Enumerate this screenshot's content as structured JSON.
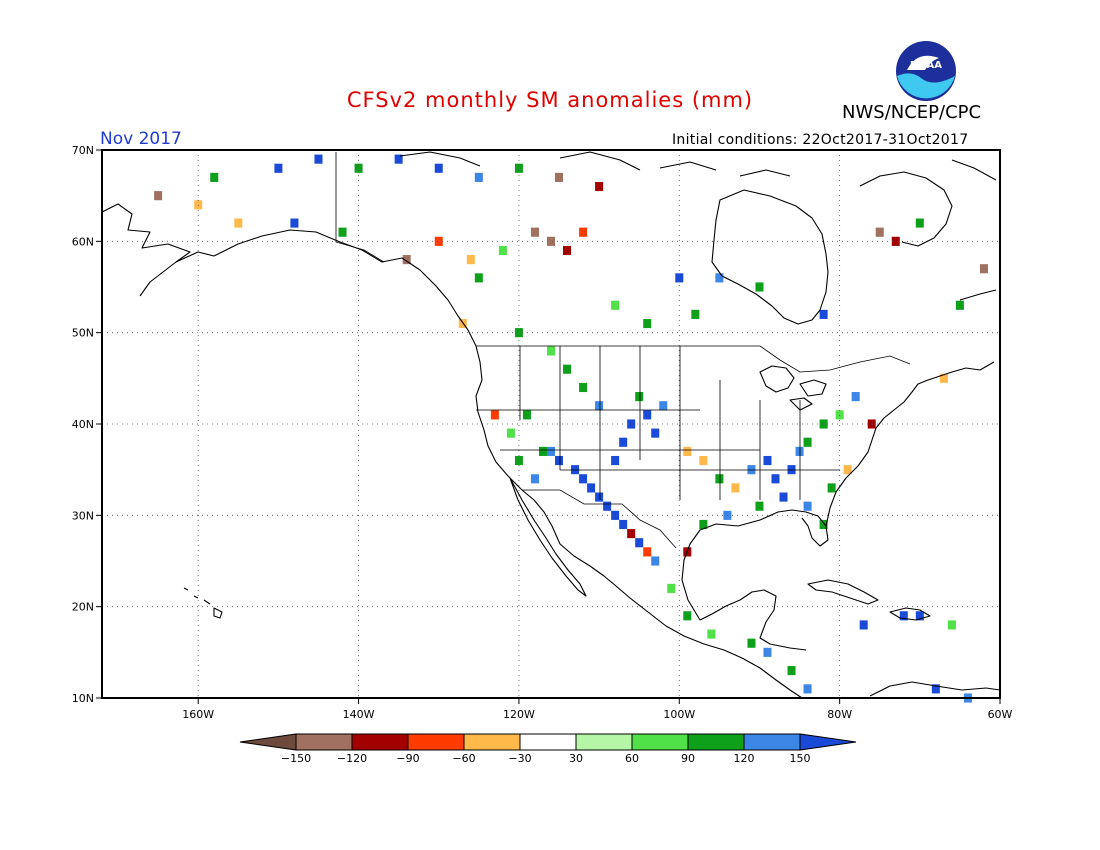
{
  "title": "CFSv2 monthly SM anomalies (mm)",
  "agency": "NWS/NCEP/CPC",
  "month_label": "Nov 2017",
  "initial_conditions": "Initial conditions: 22Oct2017-31Oct2017",
  "logo_text": "NOAA",
  "map": {
    "lon_range": [
      -172,
      -60
    ],
    "lat_range": [
      10,
      70
    ],
    "lat_ticks": [
      {
        "value": 70,
        "label": "70N"
      },
      {
        "value": 60,
        "label": "60N"
      },
      {
        "value": 50,
        "label": "50N"
      },
      {
        "value": 40,
        "label": "40N"
      },
      {
        "value": 30,
        "label": "30N"
      },
      {
        "value": 20,
        "label": "20N"
      },
      {
        "value": 10,
        "label": "10N"
      }
    ],
    "lon_ticks": [
      {
        "value": -160,
        "label": "160W"
      },
      {
        "value": -140,
        "label": "140W"
      },
      {
        "value": -120,
        "label": "120W"
      },
      {
        "value": -100,
        "label": "100W"
      },
      {
        "value": -80,
        "label": "80W"
      },
      {
        "value": -60,
        "label": "60W"
      }
    ],
    "grid": "dotted"
  },
  "colorbar": {
    "bins": [
      {
        "color": "#6e4a3c"
      },
      {
        "color": "#a07060"
      },
      {
        "color": "#a30000"
      },
      {
        "color": "#ff3b00"
      },
      {
        "color": "#ffb84a"
      },
      {
        "color": "#ffffff"
      },
      {
        "color": "#b4f5a6"
      },
      {
        "color": "#50e048"
      },
      {
        "color": "#0ea01a"
      },
      {
        "color": "#3c86e6"
      },
      {
        "color": "#1a4bd8"
      }
    ],
    "labels": [
      "-150",
      "-120",
      "-90",
      "-60",
      "-30",
      "30",
      "60",
      "90",
      "120",
      "150"
    ]
  },
  "anomaly_cells": [
    {
      "lon": -117,
      "lat": 37,
      "v": 90
    },
    {
      "lon": -116,
      "lat": 37,
      "v": 120
    },
    {
      "lon": -115,
      "lat": 36,
      "v": 150
    },
    {
      "lon": -113,
      "lat": 35,
      "v": 150
    },
    {
      "lon": -112,
      "lat": 34,
      "v": 150
    },
    {
      "lon": -111,
      "lat": 33,
      "v": 150
    },
    {
      "lon": -110,
      "lat": 32,
      "v": 150
    },
    {
      "lon": -109,
      "lat": 31,
      "v": 150
    },
    {
      "lon": -108,
      "lat": 30,
      "v": 150
    },
    {
      "lon": -107,
      "lat": 29,
      "v": 150
    },
    {
      "lon": -106,
      "lat": 28,
      "v": -120
    },
    {
      "lon": -105,
      "lat": 27,
      "v": 150
    },
    {
      "lon": -104,
      "lat": 26,
      "v": -90
    },
    {
      "lon": -103,
      "lat": 25,
      "v": 120
    },
    {
      "lon": -108,
      "lat": 36,
      "v": 150
    },
    {
      "lon": -107,
      "lat": 38,
      "v": 150
    },
    {
      "lon": -106,
      "lat": 40,
      "v": 150
    },
    {
      "lon": -104,
      "lat": 41,
      "v": 150
    },
    {
      "lon": -103,
      "lat": 39,
      "v": 150
    },
    {
      "lon": -102,
      "lat": 42,
      "v": 120
    },
    {
      "lon": -105,
      "lat": 43,
      "v": 90
    },
    {
      "lon": -110,
      "lat": 42,
      "v": 120
    },
    {
      "lon": -112,
      "lat": 44,
      "v": 90
    },
    {
      "lon": -114,
      "lat": 46,
      "v": 90
    },
    {
      "lon": -116,
      "lat": 48,
      "v": 60
    },
    {
      "lon": -119,
      "lat": 41,
      "v": 90
    },
    {
      "lon": -121,
      "lat": 39,
      "v": 60
    },
    {
      "lon": -123,
      "lat": 41,
      "v": -90
    },
    {
      "lon": -120,
      "lat": 36,
      "v": 90
    },
    {
      "lon": -118,
      "lat": 34,
      "v": 120
    },
    {
      "lon": -99,
      "lat": 37,
      "v": -60
    },
    {
      "lon": -97,
      "lat": 36,
      "v": -60
    },
    {
      "lon": -95,
      "lat": 34,
      "v": 90
    },
    {
      "lon": -93,
      "lat": 33,
      "v": -60
    },
    {
      "lon": -91,
      "lat": 35,
      "v": 120
    },
    {
      "lon": -89,
      "lat": 36,
      "v": 150
    },
    {
      "lon": -88,
      "lat": 34,
      "v": 150
    },
    {
      "lon": -87,
      "lat": 32,
      "v": 150
    },
    {
      "lon": -86,
      "lat": 35,
      "v": 150
    },
    {
      "lon": -85,
      "lat": 37,
      "v": 120
    },
    {
      "lon": -84,
      "lat": 38,
      "v": 90
    },
    {
      "lon": -82,
      "lat": 40,
      "v": 90
    },
    {
      "lon": -80,
      "lat": 41,
      "v": 60
    },
    {
      "lon": -78,
      "lat": 43,
      "v": 120
    },
    {
      "lon": -76,
      "lat": 40,
      "v": -120
    },
    {
      "lon": -79,
      "lat": 35,
      "v": -60
    },
    {
      "lon": -81,
      "lat": 33,
      "v": 90
    },
    {
      "lon": -82,
      "lat": 29,
      "v": 90
    },
    {
      "lon": -84,
      "lat": 31,
      "v": 120
    },
    {
      "lon": -90,
      "lat": 31,
      "v": 90
    },
    {
      "lon": -94,
      "lat": 30,
      "v": 120
    },
    {
      "lon": -97,
      "lat": 29,
      "v": 90
    },
    {
      "lon": -99,
      "lat": 26,
      "v": -120
    },
    {
      "lon": -101,
      "lat": 22,
      "v": 60
    },
    {
      "lon": -99,
      "lat": 19,
      "v": 90
    },
    {
      "lon": -96,
      "lat": 17,
      "v": 60
    },
    {
      "lon": -91,
      "lat": 16,
      "v": 90
    },
    {
      "lon": -89,
      "lat": 15,
      "v": 120
    },
    {
      "lon": -86,
      "lat": 13,
      "v": 90
    },
    {
      "lon": -84,
      "lat": 11,
      "v": 120
    },
    {
      "lon": -77,
      "lat": 18,
      "v": 150
    },
    {
      "lon": -72,
      "lat": 19,
      "v": 150
    },
    {
      "lon": -70,
      "lat": 19,
      "v": 150
    },
    {
      "lon": -66,
      "lat": 18,
      "v": 60
    },
    {
      "lon": -68,
      "lat": 11,
      "v": 150
    },
    {
      "lon": -64,
      "lat": 10,
      "v": 120
    },
    {
      "lon": -150,
      "lat": 68,
      "v": 150
    },
    {
      "lon": -145,
      "lat": 69,
      "v": 150
    },
    {
      "lon": -140,
      "lat": 68,
      "v": 90
    },
    {
      "lon": -135,
      "lat": 69,
      "v": 150
    },
    {
      "lon": -130,
      "lat": 68,
      "v": 150
    },
    {
      "lon": -125,
      "lat": 67,
      "v": 120
    },
    {
      "lon": -120,
      "lat": 68,
      "v": 90
    },
    {
      "lon": -115,
      "lat": 67,
      "v": -150
    },
    {
      "lon": -110,
      "lat": 66,
      "v": -120
    },
    {
      "lon": -118,
      "lat": 61,
      "v": -150
    },
    {
      "lon": -116,
      "lat": 60,
      "v": -150
    },
    {
      "lon": -114,
      "lat": 59,
      "v": -120
    },
    {
      "lon": -112,
      "lat": 61,
      "v": -90
    },
    {
      "lon": -122,
      "lat": 59,
      "v": 60
    },
    {
      "lon": -126,
      "lat": 58,
      "v": -60
    },
    {
      "lon": -130,
      "lat": 60,
      "v": -90
    },
    {
      "lon": -134,
      "lat": 58,
      "v": -150
    },
    {
      "lon": -155,
      "lat": 62,
      "v": -60
    },
    {
      "lon": -160,
      "lat": 64,
      "v": -60
    },
    {
      "lon": -165,
      "lat": 65,
      "v": -150
    },
    {
      "lon": -158,
      "lat": 67,
      "v": 90
    },
    {
      "lon": -148,
      "lat": 62,
      "v": 150
    },
    {
      "lon": -142,
      "lat": 61,
      "v": 90
    },
    {
      "lon": -100,
      "lat": 56,
      "v": 150
    },
    {
      "lon": -95,
      "lat": 56,
      "v": 120
    },
    {
      "lon": -90,
      "lat": 55,
      "v": 90
    },
    {
      "lon": -98,
      "lat": 52,
      "v": 90
    },
    {
      "lon": -104,
      "lat": 51,
      "v": 90
    },
    {
      "lon": -75,
      "lat": 61,
      "v": -150
    },
    {
      "lon": -73,
      "lat": 60,
      "v": -120
    },
    {
      "lon": -70,
      "lat": 62,
      "v": 90
    },
    {
      "lon": -62,
      "lat": 57,
      "v": -150
    },
    {
      "lon": -65,
      "lat": 53,
      "v": 90
    },
    {
      "lon": -82,
      "lat": 52,
      "v": 150
    },
    {
      "lon": -67,
      "lat": 45,
      "v": -60
    },
    {
      "lon": -120,
      "lat": 50,
      "v": 90
    },
    {
      "lon": -127,
      "lat": 51,
      "v": -60
    },
    {
      "lon": -125,
      "lat": 56,
      "v": 90
    },
    {
      "lon": -108,
      "lat": 53,
      "v": 60
    }
  ]
}
